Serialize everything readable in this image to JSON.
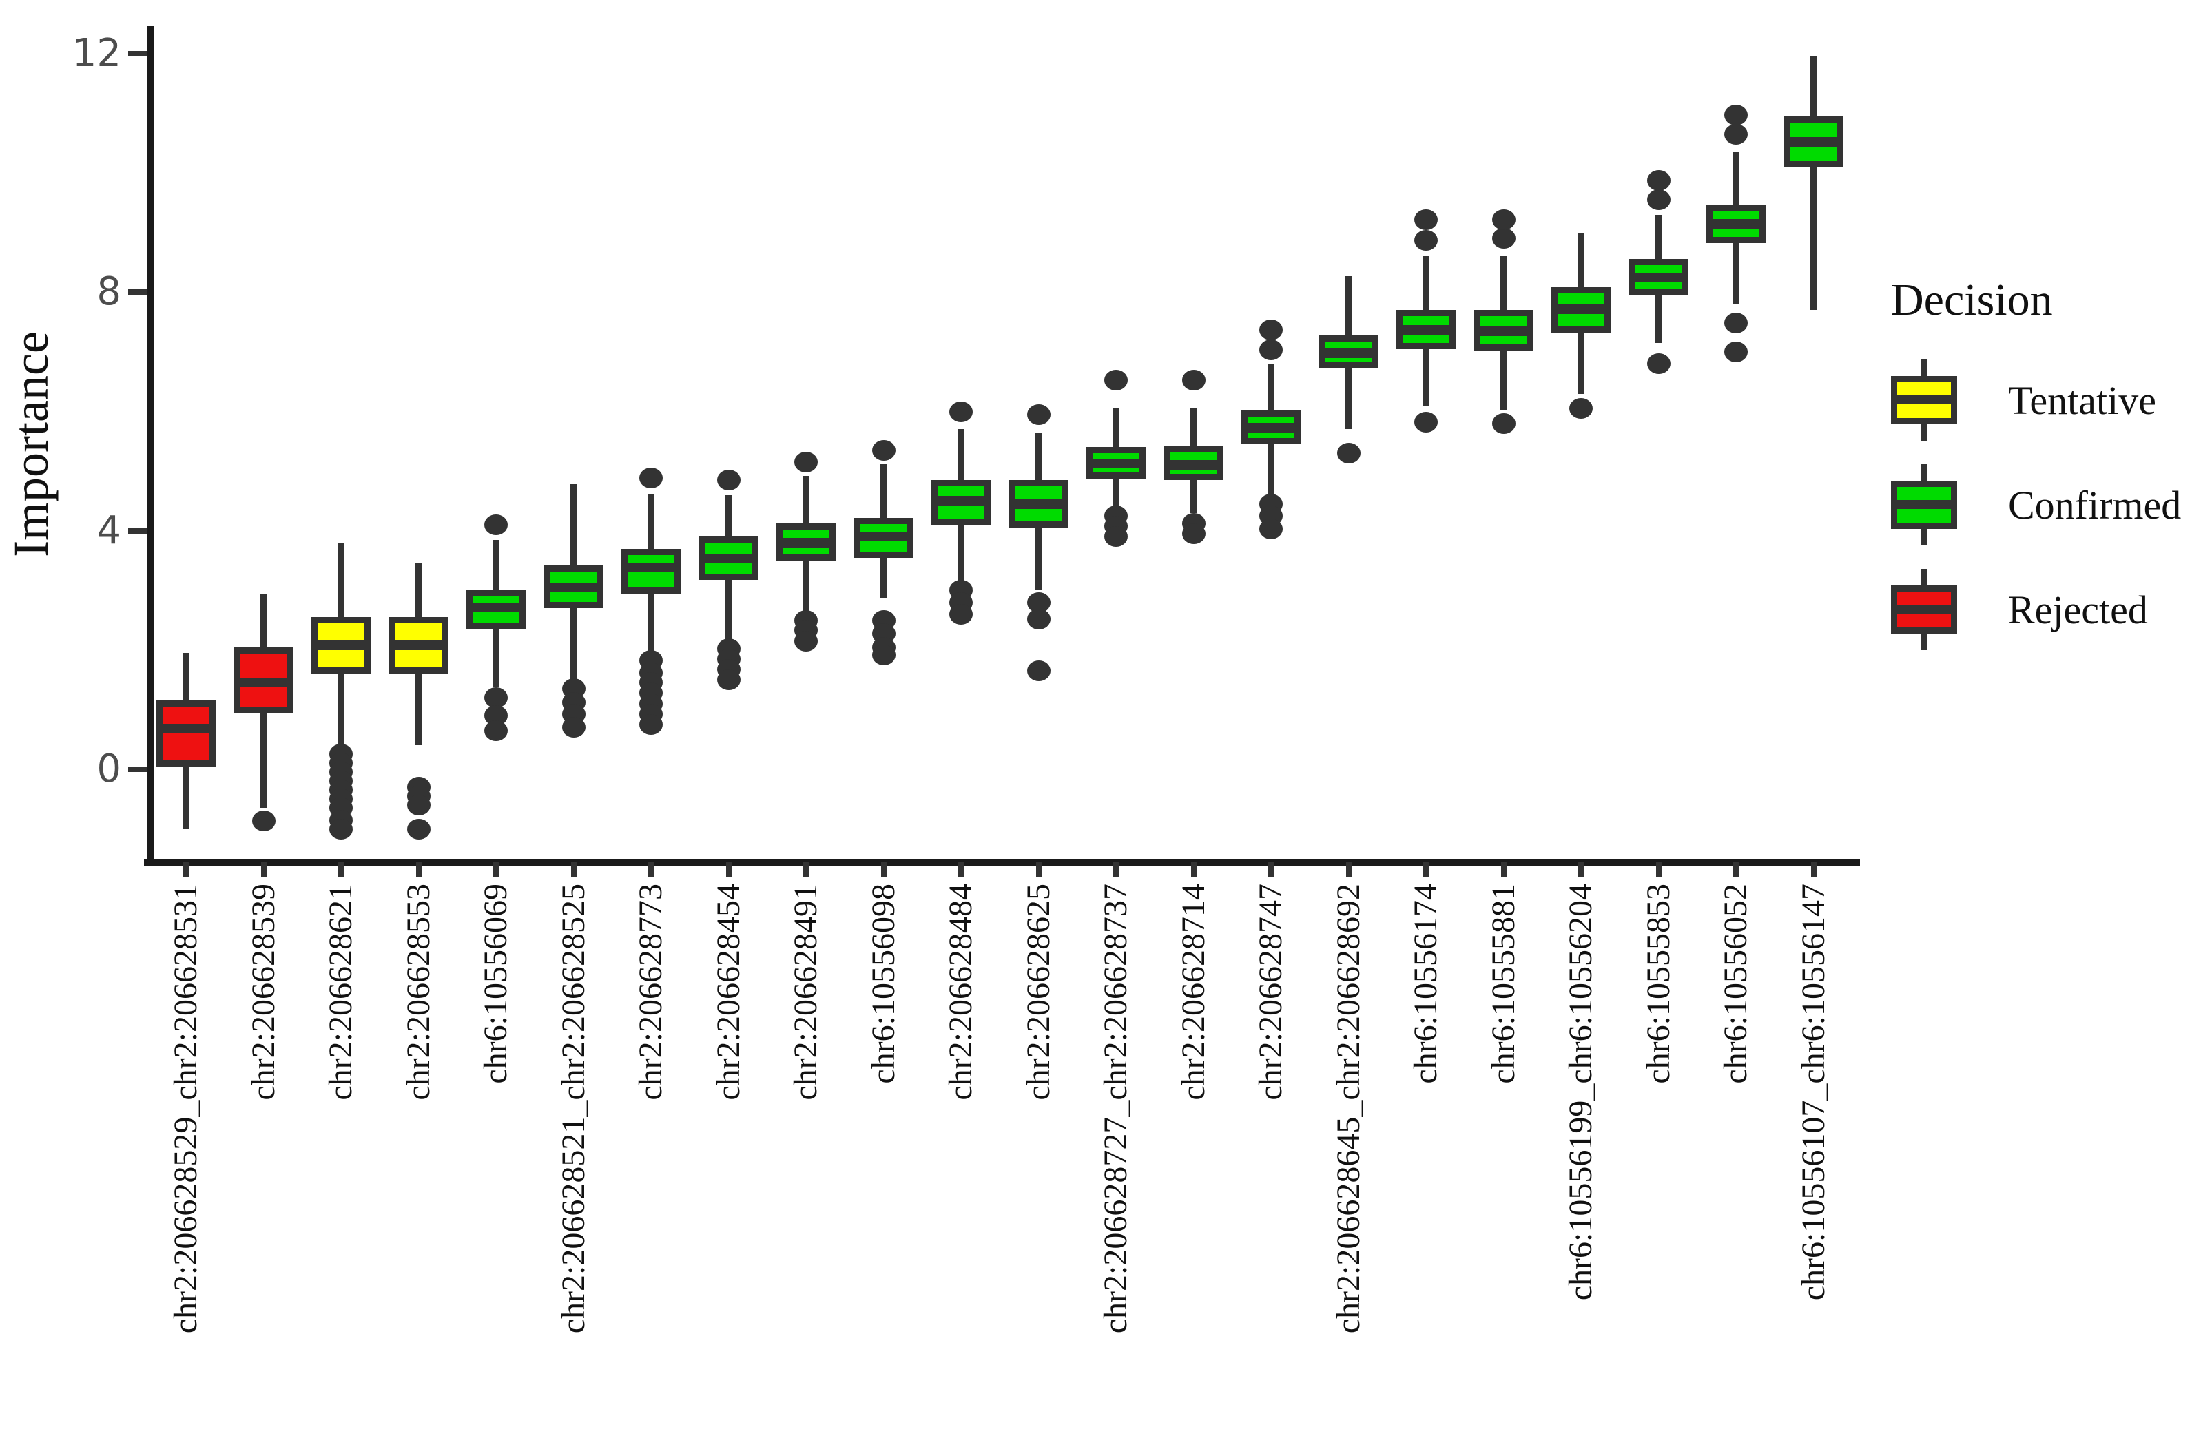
{
  "chart_data": {
    "type": "box",
    "title": "",
    "xlabel": "",
    "ylabel": "Importance",
    "ylim": [
      -1.6,
      12.5
    ],
    "yticks": [
      0,
      4,
      8,
      12
    ],
    "grid": "off",
    "legend": {
      "title": "Decision",
      "position": "right",
      "entries": [
        {
          "label": "Tentative",
          "color": "#ffff00"
        },
        {
          "label": "Confirmed",
          "color": "#00db00"
        },
        {
          "label": "Rejected",
          "color": "#ee1111"
        }
      ]
    },
    "series": [
      {
        "label": "chr2:206628529_chr2:206628531",
        "decision": "Rejected",
        "whisker_low": -1.0,
        "q1": 0.05,
        "median": 0.68,
        "q3": 1.15,
        "whisker_high": 1.95,
        "outliers_low": [],
        "outliers_high": []
      },
      {
        "label": "chr2:206628539",
        "decision": "Rejected",
        "whisker_low": -0.65,
        "q1": 0.95,
        "median": 1.45,
        "q3": 2.05,
        "whisker_high": 2.95,
        "outliers_low": [
          -0.87
        ],
        "outliers_high": []
      },
      {
        "label": "chr2:206628621",
        "decision": "Tentative",
        "whisker_low": 0.35,
        "q1": 1.6,
        "median": 2.08,
        "q3": 2.55,
        "whisker_high": 3.8,
        "outliers_low": [
          0.25,
          0.1,
          -0.05,
          -0.2,
          -0.35,
          -0.5,
          -0.65,
          -0.85,
          -1.0
        ],
        "outliers_high": []
      },
      {
        "label": "chr2:206628553",
        "decision": "Tentative",
        "whisker_low": 0.4,
        "q1": 1.6,
        "median": 2.08,
        "q3": 2.55,
        "whisker_high": 3.45,
        "outliers_low": [
          -0.3,
          -0.45,
          -0.6,
          -1.0
        ],
        "outliers_high": []
      },
      {
        "label": "chr6:10556069",
        "decision": "Confirmed",
        "whisker_low": 1.37,
        "q1": 2.36,
        "median": 2.72,
        "q3": 3.0,
        "whisker_high": 3.85,
        "outliers_low": [
          1.2,
          0.9,
          0.65
        ],
        "outliers_high": [
          4.1
        ]
      },
      {
        "label": "chr2:206628521_chr2:206628525",
        "decision": "Confirmed",
        "whisker_low": 1.5,
        "q1": 2.7,
        "median": 3.05,
        "q3": 3.42,
        "whisker_high": 4.78,
        "outliers_low": [
          1.35,
          1.12,
          0.92,
          0.7
        ],
        "outliers_high": []
      },
      {
        "label": "chr2:206628773",
        "decision": "Confirmed",
        "whisker_low": 1.95,
        "q1": 2.95,
        "median": 3.38,
        "q3": 3.7,
        "whisker_high": 4.62,
        "outliers_low": [
          1.82,
          1.62,
          1.45,
          1.28,
          1.1,
          0.92,
          0.75
        ],
        "outliers_high": [
          4.88
        ]
      },
      {
        "label": "chr2:206628454",
        "decision": "Confirmed",
        "whisker_low": 2.15,
        "q1": 3.18,
        "median": 3.53,
        "q3": 3.9,
        "whisker_high": 4.6,
        "outliers_low": [
          2.02,
          1.85,
          1.68,
          1.5
        ],
        "outliers_high": [
          4.85
        ]
      },
      {
        "label": "chr2:206628491",
        "decision": "Confirmed",
        "whisker_low": 2.6,
        "q1": 3.5,
        "median": 3.8,
        "q3": 4.12,
        "whisker_high": 4.92,
        "outliers_low": [
          2.5,
          2.33,
          2.15
        ],
        "outliers_high": [
          5.15
        ]
      },
      {
        "label": "chr6:10556098",
        "decision": "Confirmed",
        "whisker_low": 2.88,
        "q1": 3.55,
        "median": 3.9,
        "q3": 4.22,
        "whisker_high": 5.12,
        "outliers_low": [
          2.5,
          2.28,
          2.05,
          1.92
        ],
        "outliers_high": [
          5.35
        ]
      },
      {
        "label": "chr2:206628484",
        "decision": "Confirmed",
        "whisker_low": 3.1,
        "q1": 4.1,
        "median": 4.5,
        "q3": 4.85,
        "whisker_high": 5.7,
        "outliers_low": [
          3.0,
          2.8,
          2.6
        ],
        "outliers_high": [
          6.0
        ]
      },
      {
        "label": "chr2:206628625",
        "decision": "Confirmed",
        "whisker_low": 3.0,
        "q1": 4.05,
        "median": 4.45,
        "q3": 4.85,
        "whisker_high": 5.65,
        "outliers_low": [
          2.8,
          2.52,
          1.65
        ],
        "outliers_high": [
          5.95
        ]
      },
      {
        "label": "chr2:206628727_chr2:206628737",
        "decision": "Confirmed",
        "whisker_low": 4.33,
        "q1": 4.87,
        "median": 5.13,
        "q3": 5.4,
        "whisker_high": 6.05,
        "outliers_low": [
          4.25,
          4.08,
          3.9
        ],
        "outliers_high": [
          6.52
        ]
      },
      {
        "label": "chr2:206628714",
        "decision": "Confirmed",
        "whisker_low": 4.3,
        "q1": 4.85,
        "median": 5.1,
        "q3": 5.42,
        "whisker_high": 6.05,
        "outliers_low": [
          4.12,
          3.95
        ],
        "outliers_high": [
          6.52
        ]
      },
      {
        "label": "chr2:206628747",
        "decision": "Confirmed",
        "whisker_low": 4.55,
        "q1": 5.45,
        "median": 5.73,
        "q3": 6.02,
        "whisker_high": 6.8,
        "outliers_low": [
          4.45,
          4.25,
          4.03
        ],
        "outliers_high": [
          7.03,
          7.37
        ]
      },
      {
        "label": "chr2:206628645_chr2:206628692",
        "decision": "Confirmed",
        "whisker_low": 5.7,
        "q1": 6.72,
        "median": 6.98,
        "q3": 7.28,
        "whisker_high": 8.27,
        "outliers_low": [
          5.3
        ],
        "outliers_high": []
      },
      {
        "label": "chr6:10556174",
        "decision": "Confirmed",
        "whisker_low": 6.1,
        "q1": 7.05,
        "median": 7.37,
        "q3": 7.7,
        "whisker_high": 8.62,
        "outliers_low": [
          5.82
        ],
        "outliers_high": [
          8.87,
          9.22
        ]
      },
      {
        "label": "chr6:10555881",
        "decision": "Confirmed",
        "whisker_low": 6.02,
        "q1": 7.02,
        "median": 7.35,
        "q3": 7.7,
        "whisker_high": 8.6,
        "outliers_low": [
          5.8
        ],
        "outliers_high": [
          8.9,
          9.22
        ]
      },
      {
        "label": "chr6:10556199_chr6:10556204",
        "decision": "Confirmed",
        "whisker_low": 6.3,
        "q1": 7.32,
        "median": 7.72,
        "q3": 8.08,
        "whisker_high": 9.0,
        "outliers_low": [
          6.05
        ],
        "outliers_high": []
      },
      {
        "label": "chr6:10555853",
        "decision": "Confirmed",
        "whisker_low": 7.15,
        "q1": 7.95,
        "median": 8.25,
        "q3": 8.56,
        "whisker_high": 9.3,
        "outliers_low": [
          6.8
        ],
        "outliers_high": [
          9.55,
          9.87
        ]
      },
      {
        "label": "chr6:10556052",
        "decision": "Confirmed",
        "whisker_low": 7.8,
        "q1": 8.82,
        "median": 9.15,
        "q3": 9.47,
        "whisker_high": 10.35,
        "outliers_low": [
          7.48,
          7.0
        ],
        "outliers_high": [
          10.65,
          10.97
        ]
      },
      {
        "label": "chr6:10556107_chr6:10556147",
        "decision": "Confirmed",
        "whisker_low": 7.7,
        "q1": 10.1,
        "median": 10.52,
        "q3": 10.95,
        "whisker_high": 11.95,
        "outliers_low": [],
        "outliers_high": []
      }
    ]
  }
}
